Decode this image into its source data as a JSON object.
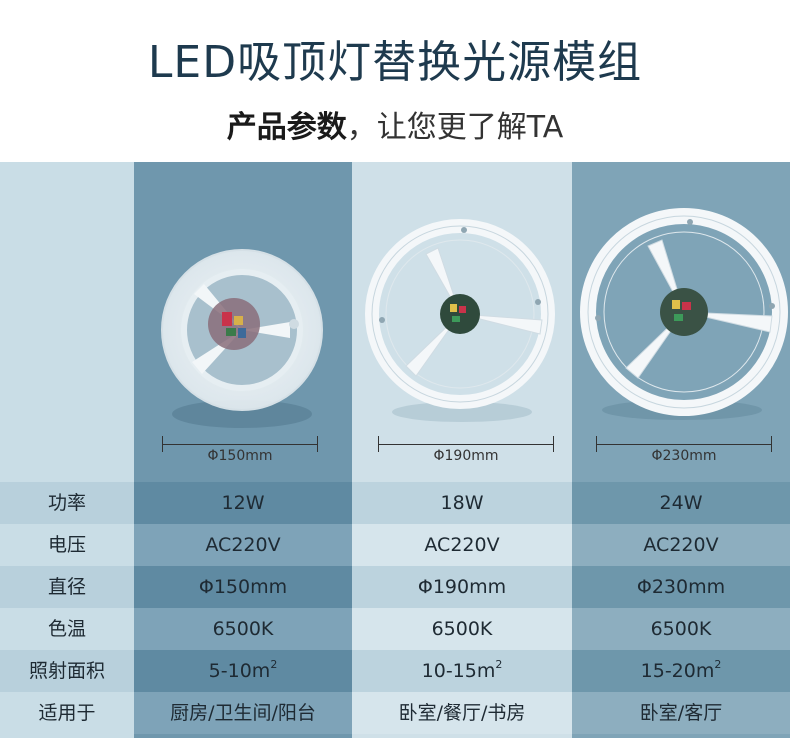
{
  "header": {
    "title": "LED吸顶灯替换光源模组",
    "subtitle_bold": "产品参数",
    "subtitle_rest": "，让您更了解TA"
  },
  "products": [
    {
      "diameter_label": "Φ150mm"
    },
    {
      "diameter_label": "Φ190mm"
    },
    {
      "diameter_label": "Φ230mm"
    }
  ],
  "specs": [
    {
      "label": "功率",
      "values": [
        "12W",
        "18W",
        "24W"
      ]
    },
    {
      "label": "电压",
      "values": [
        "AC220V",
        "AC220V",
        "AC220V"
      ]
    },
    {
      "label": "直径",
      "values": [
        "Φ150mm",
        "Φ190mm",
        "Φ230mm"
      ]
    },
    {
      "label": "色温",
      "values": [
        "6500K",
        "6500K",
        "6500K"
      ]
    },
    {
      "label": "照射面积",
      "values": [
        "5-10m",
        "10-15m",
        "15-20m"
      ],
      "sup": "2"
    },
    {
      "label": "适用于",
      "values": [
        "厨房/卫生间/阳台",
        "卧室/餐厅/书房",
        "卧室/客厅"
      ]
    }
  ],
  "colors": {
    "title": "#1e3a4e",
    "col1": "#6f97ad",
    "col2": "#cfe0e8",
    "col3": "#7fa4b7"
  }
}
